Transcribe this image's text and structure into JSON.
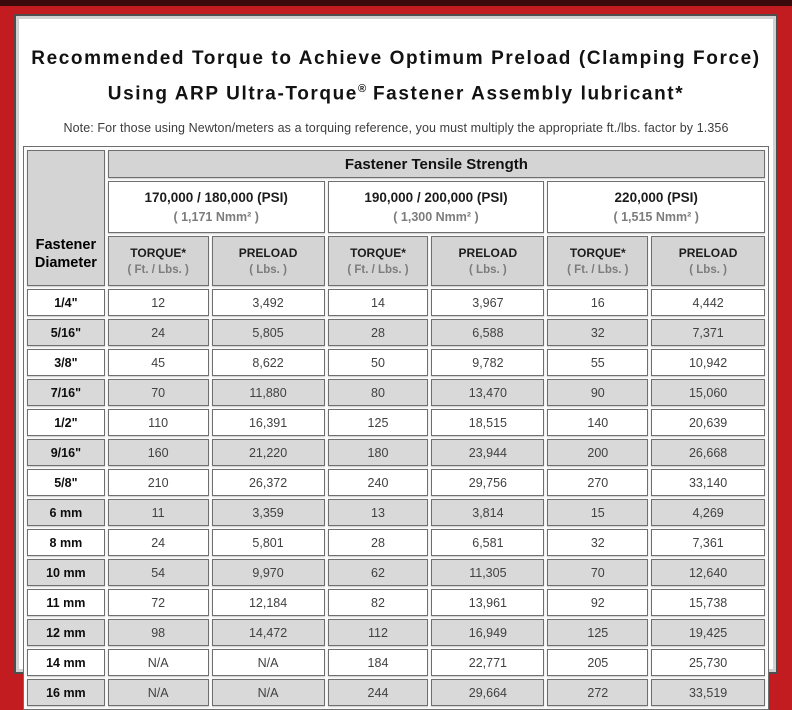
{
  "header": {
    "title_line1": "Recommended Torque to Achieve Optimum Preload (Clamping Force)",
    "title_line2_pre": "Using ARP Ultra-Torque",
    "title_line2_sup": "®",
    "title_line2_post": " Fastener Assembly lubricant*",
    "note": "Note: For those using Newton/meters as a torquing reference, you must multiply the appropriate ft./lbs. factor by 1.356"
  },
  "table": {
    "corner_header": "Fastener Diameter",
    "main_header": "Fastener Tensile Strength",
    "strength_groups": [
      {
        "psi": "170,000 / 180,000 (PSI)",
        "nmm": "( 1,171 Nmm² )"
      },
      {
        "psi": "190,000 / 200,000 (PSI)",
        "nmm": "( 1,300 Nmm² )"
      },
      {
        "psi": "220,000 (PSI)",
        "nmm": "( 1,515 Nmm² )"
      }
    ],
    "column_headers": {
      "torque_label": "TORQUE*",
      "torque_unit": "( Ft. / Lbs. )",
      "preload_label": "PRELOAD",
      "preload_unit": "( Lbs. )"
    },
    "rows": [
      {
        "diameter": "1/4\"",
        "values": [
          "12",
          "3,492",
          "14",
          "3,967",
          "16",
          "4,442"
        ]
      },
      {
        "diameter": "5/16\"",
        "values": [
          "24",
          "5,805",
          "28",
          "6,588",
          "32",
          "7,371"
        ]
      },
      {
        "diameter": "3/8\"",
        "values": [
          "45",
          "8,622",
          "50",
          "9,782",
          "55",
          "10,942"
        ]
      },
      {
        "diameter": "7/16\"",
        "values": [
          "70",
          "11,880",
          "80",
          "13,470",
          "90",
          "15,060"
        ]
      },
      {
        "diameter": "1/2\"",
        "values": [
          "110",
          "16,391",
          "125",
          "18,515",
          "140",
          "20,639"
        ]
      },
      {
        "diameter": "9/16\"",
        "values": [
          "160",
          "21,220",
          "180",
          "23,944",
          "200",
          "26,668"
        ]
      },
      {
        "diameter": "5/8\"",
        "values": [
          "210",
          "26,372",
          "240",
          "29,756",
          "270",
          "33,140"
        ]
      },
      {
        "diameter": "6 mm",
        "values": [
          "11",
          "3,359",
          "13",
          "3,814",
          "15",
          "4,269"
        ]
      },
      {
        "diameter": "8 mm",
        "values": [
          "24",
          "5,801",
          "28",
          "6,581",
          "32",
          "7,361"
        ]
      },
      {
        "diameter": "10 mm",
        "values": [
          "54",
          "9,970",
          "62",
          "11,305",
          "70",
          "12,640"
        ]
      },
      {
        "diameter": "11 mm",
        "values": [
          "72",
          "12,184",
          "82",
          "13,961",
          "92",
          "15,738"
        ]
      },
      {
        "diameter": "12 mm",
        "values": [
          "98",
          "14,472",
          "112",
          "16,949",
          "125",
          "19,425"
        ]
      },
      {
        "diameter": "14 mm",
        "values": [
          "N/A",
          "N/A",
          "184",
          "22,771",
          "205",
          "25,730"
        ]
      },
      {
        "diameter": "16 mm",
        "values": [
          "N/A",
          "N/A",
          "244",
          "29,664",
          "272",
          "33,519"
        ]
      }
    ]
  },
  "colors": {
    "page_red": "#c21b20",
    "top_strip_maroon": "#3a0a0c",
    "panel_border_dark": "#4e4e4e",
    "panel_border_light": "#d2d2d2",
    "cell_border": "#6f6f6f",
    "header_gray": "#d4d4d4",
    "row_alt_gray": "#d9d9d9",
    "row_white": "#ffffff",
    "muted_text": "#7c7c7c"
  }
}
